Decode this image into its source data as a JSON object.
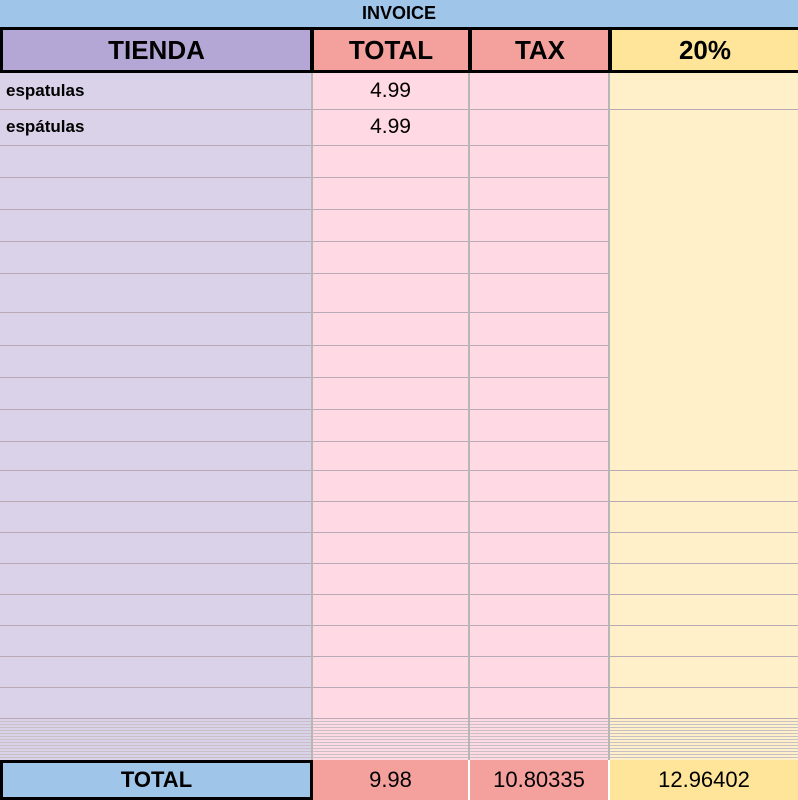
{
  "header": {
    "title": "INVOICE"
  },
  "table": {
    "columns": [
      "TIENDA",
      "TOTAL",
      "TAX",
      "20%"
    ],
    "rows": [
      [
        "espatulas",
        4.99
      ],
      [
        "espátulas",
        4.99
      ]
    ],
    "footer": {
      "label": "TOTAL",
      "total": 9.98,
      "tax": 10.80335,
      "percent": 12.96402
    }
  }
}
